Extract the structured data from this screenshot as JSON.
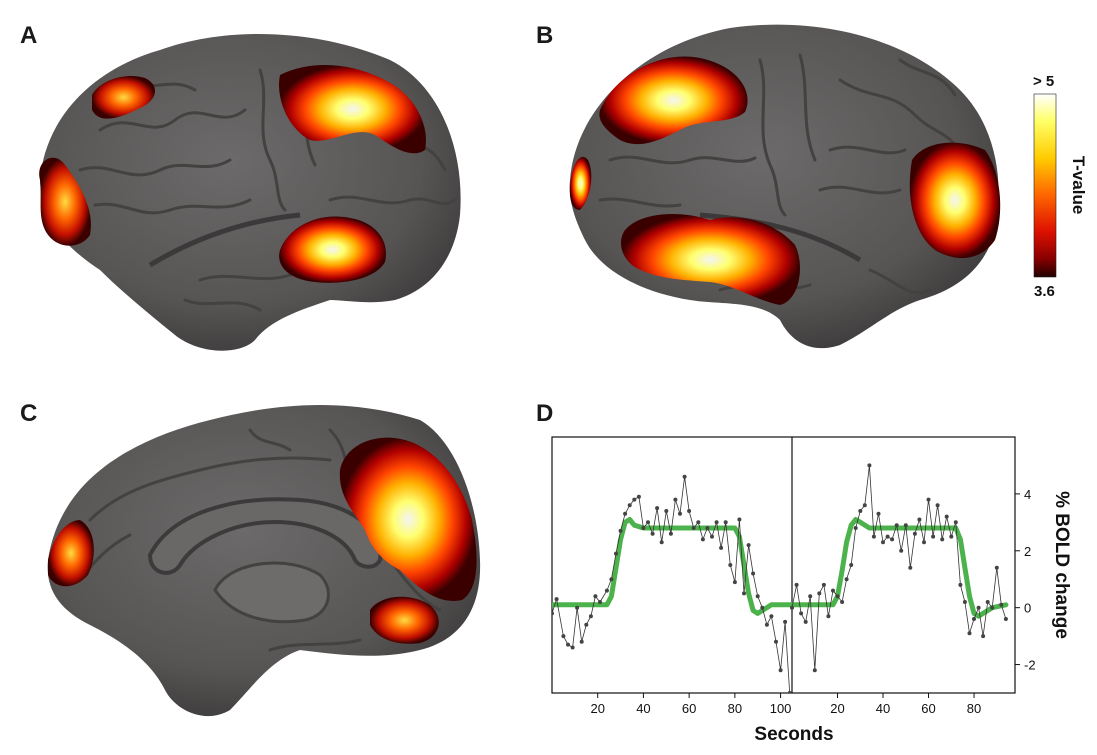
{
  "panels": {
    "a": "A",
    "b": "B",
    "c": "C",
    "d": "D"
  },
  "colorbar": {
    "title": "T-value",
    "max_label": "> 5",
    "min_label": "3.6",
    "colors": [
      "#ffffff",
      "#ffff66",
      "#ffcc00",
      "#ff6600",
      "#dd1100",
      "#880000",
      "#220000"
    ]
  },
  "colors": {
    "cortex": "#5b5858",
    "cortex_shadow": "#3c3a3a",
    "sulcus": "#454242",
    "model_line": "#4cb34c",
    "data_line": "#333333",
    "background": "#ffffff"
  },
  "chart_data": {
    "type": "line",
    "xlabel": "Seconds",
    "ylabel": "% BOLD change",
    "ylim": [
      -3,
      6
    ],
    "yticks": [
      4,
      2,
      0,
      -2
    ],
    "segments": [
      {
        "xticks": [
          20,
          40,
          60,
          80,
          100
        ],
        "xlim": [
          0,
          105
        ],
        "measured": [
          [
            0,
            -0.2
          ],
          [
            2,
            0.3
          ],
          [
            5,
            -1.0
          ],
          [
            7,
            -1.3
          ],
          [
            9,
            -1.4
          ],
          [
            11,
            0.0
          ],
          [
            13,
            -1.2
          ],
          [
            15,
            -0.6
          ],
          [
            17,
            -0.3
          ],
          [
            19,
            0.4
          ],
          [
            21,
            0.2
          ],
          [
            24,
            0.6
          ],
          [
            26,
            1.0
          ],
          [
            28,
            1.9
          ],
          [
            30,
            2.7
          ],
          [
            32,
            3.3
          ],
          [
            34,
            3.6
          ],
          [
            36,
            3.8
          ],
          [
            38,
            3.9
          ],
          [
            40,
            2.8
          ],
          [
            42,
            3.0
          ],
          [
            44,
            2.6
          ],
          [
            46,
            3.5
          ],
          [
            48,
            2.3
          ],
          [
            50,
            3.4
          ],
          [
            52,
            2.6
          ],
          [
            54,
            3.8
          ],
          [
            56,
            3.3
          ],
          [
            58,
            4.6
          ],
          [
            60,
            3.4
          ],
          [
            62,
            2.8
          ],
          [
            64,
            3.0
          ],
          [
            66,
            2.4
          ],
          [
            68,
            2.8
          ],
          [
            70,
            2.5
          ],
          [
            72,
            3.0
          ],
          [
            74,
            2.1
          ],
          [
            76,
            3.0
          ],
          [
            78,
            1.5
          ],
          [
            80,
            0.9
          ],
          [
            82,
            3.1
          ],
          [
            84,
            0.5
          ],
          [
            86,
            2.2
          ],
          [
            88,
            1.2
          ],
          [
            90,
            0.4
          ],
          [
            92,
            0.0
          ],
          [
            94,
            -0.6
          ],
          [
            96,
            -0.3
          ],
          [
            98,
            -1.2
          ],
          [
            100,
            -2.2
          ],
          [
            102,
            -0.5
          ],
          [
            104,
            -3.0
          ]
        ],
        "model": [
          [
            0,
            0.1
          ],
          [
            24,
            0.1
          ],
          [
            26,
            0.4
          ],
          [
            28,
            1.4
          ],
          [
            30,
            2.4
          ],
          [
            32,
            3.0
          ],
          [
            34,
            3.1
          ],
          [
            36,
            2.9
          ],
          [
            40,
            2.8
          ],
          [
            60,
            2.8
          ],
          [
            80,
            2.8
          ],
          [
            82,
            2.5
          ],
          [
            84,
            1.5
          ],
          [
            86,
            0.5
          ],
          [
            88,
            -0.1
          ],
          [
            90,
            -0.2
          ],
          [
            92,
            -0.1
          ],
          [
            96,
            0.1
          ],
          [
            105,
            0.1
          ]
        ]
      },
      {
        "xticks": [
          20,
          40,
          60,
          80
        ],
        "xlim": [
          0,
          98
        ],
        "measured": [
          [
            0,
            0.0
          ],
          [
            2,
            0.8
          ],
          [
            4,
            -0.2
          ],
          [
            6,
            -0.5
          ],
          [
            8,
            0.4
          ],
          [
            10,
            -2.2
          ],
          [
            12,
            0.5
          ],
          [
            14,
            0.8
          ],
          [
            16,
            -0.3
          ],
          [
            18,
            0.6
          ],
          [
            20,
            0.4
          ],
          [
            22,
            0.2
          ],
          [
            24,
            1.0
          ],
          [
            26,
            1.5
          ],
          [
            28,
            2.8
          ],
          [
            30,
            3.4
          ],
          [
            32,
            3.6
          ],
          [
            34,
            5.0
          ],
          [
            36,
            2.5
          ],
          [
            38,
            3.3
          ],
          [
            40,
            2.3
          ],
          [
            42,
            2.5
          ],
          [
            44,
            2.4
          ],
          [
            46,
            2.9
          ],
          [
            48,
            2.0
          ],
          [
            50,
            2.9
          ],
          [
            52,
            1.4
          ],
          [
            54,
            2.6
          ],
          [
            56,
            3.1
          ],
          [
            58,
            2.3
          ],
          [
            60,
            3.8
          ],
          [
            62,
            2.5
          ],
          [
            64,
            3.6
          ],
          [
            66,
            2.4
          ],
          [
            68,
            3.2
          ],
          [
            70,
            2.5
          ],
          [
            72,
            3.0
          ],
          [
            74,
            0.8
          ],
          [
            76,
            0.2
          ],
          [
            78,
            -0.9
          ],
          [
            80,
            -0.4
          ],
          [
            82,
            0.0
          ],
          [
            84,
            -1.0
          ],
          [
            86,
            0.2
          ],
          [
            88,
            0.0
          ],
          [
            90,
            1.4
          ],
          [
            92,
            0.1
          ],
          [
            94,
            -0.4
          ]
        ],
        "model": [
          [
            0,
            0.1
          ],
          [
            18,
            0.1
          ],
          [
            20,
            0.4
          ],
          [
            22,
            1.3
          ],
          [
            24,
            2.3
          ],
          [
            26,
            2.9
          ],
          [
            28,
            3.1
          ],
          [
            30,
            3.0
          ],
          [
            34,
            2.8
          ],
          [
            50,
            2.8
          ],
          [
            72,
            2.8
          ],
          [
            74,
            2.4
          ],
          [
            76,
            1.4
          ],
          [
            78,
            0.4
          ],
          [
            80,
            -0.2
          ],
          [
            82,
            -0.3
          ],
          [
            84,
            -0.2
          ],
          [
            88,
            0.0
          ],
          [
            94,
            0.1
          ]
        ]
      }
    ]
  }
}
